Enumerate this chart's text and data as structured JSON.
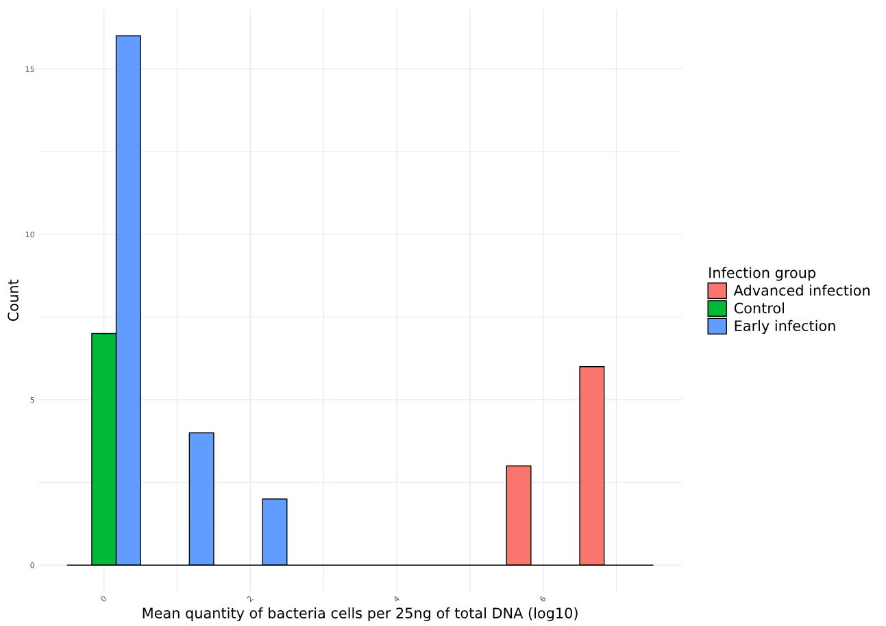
{
  "chart_data": {
    "type": "histogram",
    "xlabel": "Mean quantity of bacteria cells per 25ng of total DNA (log10)",
    "ylabel": "Count",
    "legend_title": "Infection group",
    "bins": [
      -0.5,
      0.5,
      1.5,
      2.5,
      3.5,
      4.5,
      5.5,
      6.5,
      7.5
    ],
    "series": [
      {
        "name": "Advanced infection",
        "color": "#f8766d",
        "values": [
          0,
          0,
          0,
          0,
          0,
          0,
          3,
          6
        ]
      },
      {
        "name": "Control",
        "color": "#00ba38",
        "values": [
          7,
          0,
          0,
          0,
          0,
          0,
          0,
          0
        ]
      },
      {
        "name": "Early infection",
        "color": "#619cff",
        "values": [
          16,
          4,
          2,
          0,
          0,
          0,
          0,
          0
        ]
      }
    ],
    "xlim": [
      -0.9,
      7.9
    ],
    "ylim": [
      -0.8,
      16.8
    ],
    "xticks": [
      0,
      {
        "value": 1,
        "label": null
      },
      2,
      {
        "value": 3,
        "label": null
      },
      4,
      {
        "value": 5,
        "label": null
      },
      6,
      {
        "value": 7,
        "label": null
      }
    ],
    "yticks": [
      0,
      {
        "value": 2.5,
        "label": null
      },
      5,
      {
        "value": 7.5,
        "label": null
      },
      10,
      {
        "value": 12.5,
        "label": null
      },
      15
    ],
    "grid": true,
    "legend": "right"
  }
}
